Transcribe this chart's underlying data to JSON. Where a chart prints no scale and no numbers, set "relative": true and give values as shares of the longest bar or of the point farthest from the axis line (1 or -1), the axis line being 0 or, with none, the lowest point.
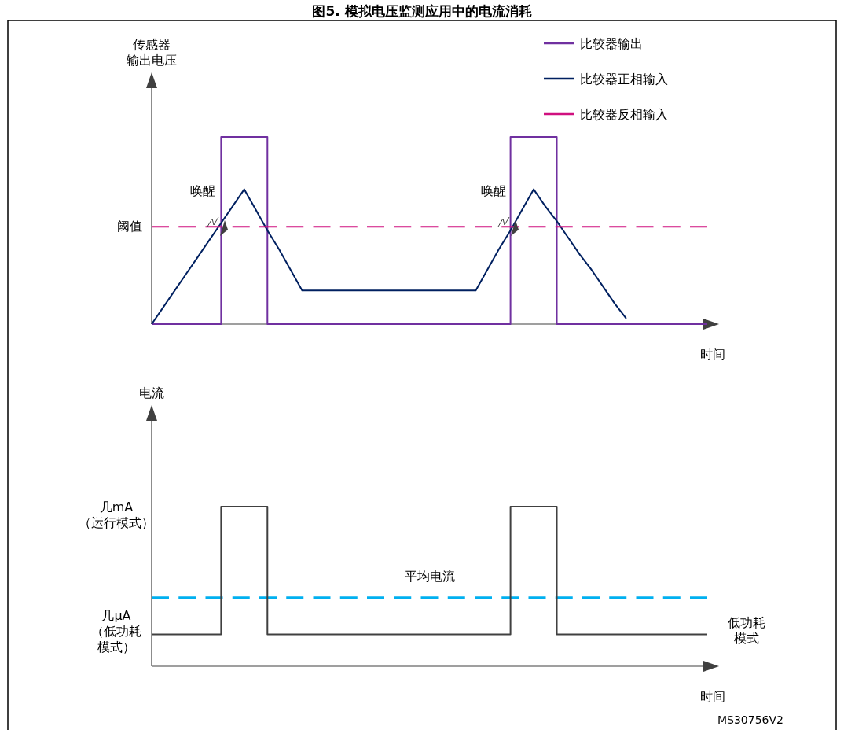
{
  "chart_data": [
    {
      "type": "line",
      "title": "图5. 模拟电压监测应用中的电流消耗",
      "ylabel": "传感器输出电压",
      "xlabel": "时间",
      "relative": true,
      "legend": "top right",
      "categories": [
        null,
        null,
        null,
        null,
        null,
        null,
        null,
        null,
        null,
        null,
        null,
        null,
        null,
        null,
        null,
        null,
        null,
        null,
        null,
        null,
        null,
        null,
        null,
        null,
        null,
        null,
        null,
        null,
        null,
        null,
        null,
        null,
        null,
        null,
        null,
        null,
        null,
        null,
        null,
        null,
        null,
        null,
        null,
        null,
        null,
        null,
        null,
        null,
        null
      ],
      "series": [
        {
          "name": "比较器输出",
          "type": "step",
          "color": "#7030a0",
          "line_style": "solid",
          "values": [
            0,
            0,
            0,
            0,
            0,
            0,
            1,
            1,
            1,
            1,
            0,
            0,
            0,
            0,
            0,
            0,
            0,
            0,
            0,
            0,
            0,
            0,
            0,
            0,
            0,
            0,
            0,
            0,
            0,
            0,
            0,
            1,
            1,
            1,
            1,
            0,
            0,
            0,
            0,
            0,
            0,
            0,
            0,
            0,
            0,
            0,
            0,
            0,
            0
          ]
        },
        {
          "name": "比较器正相输入",
          "color": "#002060",
          "line_style": "solid",
          "values": [
            0,
            0.09,
            0.18,
            0.27,
            0.36,
            0.45,
            0.54,
            0.63,
            0.72,
            0.61,
            0.5,
            0.4,
            0.29,
            0.18,
            0.18,
            0.18,
            0.18,
            0.18,
            0.18,
            0.18,
            0.18,
            0.18,
            0.18,
            0.18,
            0.18,
            0.18,
            0.18,
            0.18,
            0.18,
            0.29,
            0.4,
            0.5,
            0.61,
            0.72,
            0.63,
            0.55,
            0.46,
            0.37,
            0.29,
            0.2,
            0.11,
            0.03,
            null,
            null,
            null,
            null,
            null,
            null,
            null
          ]
        },
        {
          "name": "比较器反相输入",
          "color": "#d0107f",
          "line_style": "dashed",
          "values": [
            0.52,
            0.52,
            0.52,
            0.52,
            0.52,
            0.52,
            0.52,
            0.52,
            0.52,
            0.52,
            0.52,
            0.52,
            0.52,
            0.52,
            0.52,
            0.52,
            0.52,
            0.52,
            0.52,
            0.52,
            0.52,
            0.52,
            0.52,
            0.52,
            0.52,
            0.52,
            0.52,
            0.52,
            0.52,
            0.52,
            0.52,
            0.52,
            0.52,
            0.52,
            0.52,
            0.52,
            0.52,
            0.52,
            0.52,
            0.52,
            0.52,
            0.52,
            0.52,
            0.52,
            0.52,
            0.52,
            0.52,
            0.52,
            0.52
          ]
        }
      ],
      "annotations": [
        "阈值",
        "唤醒",
        "唤醒"
      ]
    },
    {
      "type": "step",
      "ylabel": "电流",
      "xlabel": "时间",
      "relative": true,
      "categories": [
        null,
        null,
        null,
        null,
        null,
        null,
        null,
        null,
        null,
        null,
        null,
        null,
        null,
        null,
        null,
        null,
        null,
        null,
        null,
        null,
        null,
        null,
        null,
        null,
        null,
        null,
        null,
        null,
        null,
        null,
        null,
        null,
        null,
        null,
        null,
        null,
        null,
        null,
        null,
        null,
        null,
        null,
        null,
        null,
        null,
        null,
        null,
        null,
        null
      ],
      "series": [
        {
          "color": "#404040",
          "line_style": "solid",
          "values": [
            0.2,
            0.2,
            0.2,
            0.2,
            0.2,
            0.2,
            1,
            1,
            1,
            1,
            0.2,
            0.2,
            0.2,
            0.2,
            0.2,
            0.2,
            0.2,
            0.2,
            0.2,
            0.2,
            0.2,
            0.2,
            0.2,
            0.2,
            0.2,
            0.2,
            0.2,
            0.2,
            0.2,
            0.2,
            0.2,
            1,
            1,
            1,
            1,
            0.2,
            0.2,
            0.2,
            0.2,
            0.2,
            0.2,
            0.2,
            0.2,
            0.2,
            0.2,
            0.2,
            0.2,
            0.2,
            0.2
          ]
        }
      ],
      "ref_lines": [
        {
          "axis": "y",
          "value": 0.43,
          "label": "平均电流",
          "color": "#00b0f0",
          "line_style": "dashed"
        }
      ],
      "annotations": [
        "几mA（运行模式）",
        "几μA（低功耗模式）",
        "低功耗模式",
        "MS30756V2"
      ]
    }
  ]
}
